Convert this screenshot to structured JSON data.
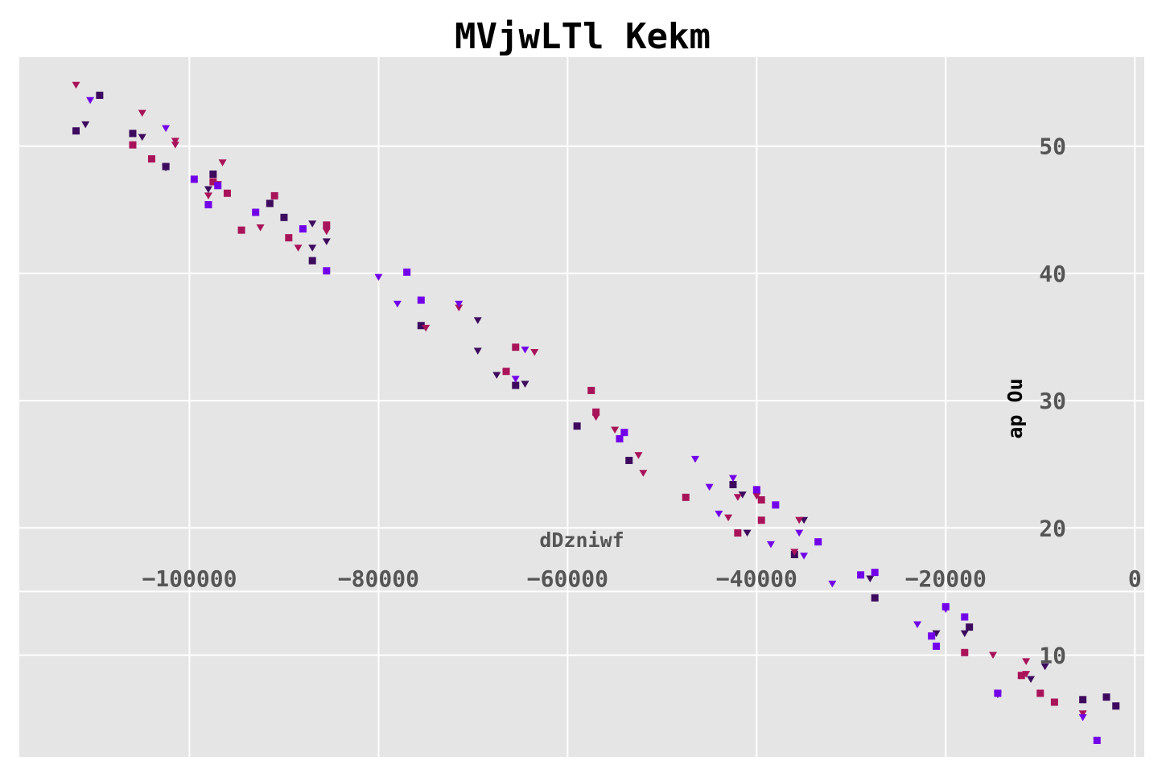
{
  "chart_data": {
    "type": "scatter",
    "title": "MVjwLTl Kekm",
    "xlabel": "dDzniwf",
    "ylabel": "ap Ou",
    "xlim": [
      -118000,
      1000
    ],
    "ylim": [
      2,
      57
    ],
    "x_ticks": [
      -100000,
      -80000,
      -60000,
      -40000,
      -20000,
      0
    ],
    "x_tick_labels": [
      "−100000",
      "−80000",
      "−60000",
      "−40000",
      "−20000",
      "0"
    ],
    "y_ticks": [
      10,
      20,
      30,
      40,
      50
    ],
    "y_tick_labels": [
      "10",
      "20",
      "30",
      "40",
      "50"
    ],
    "grid": true,
    "background": "#e5e5e5",
    "series": [
      {
        "color": "#3d0a5e",
        "marker": "square",
        "points": [
          [
            -109500,
            54.0
          ],
          [
            -112000,
            51.2
          ],
          [
            -106000,
            51.0
          ],
          [
            -102500,
            48.4
          ],
          [
            -97500,
            47.8
          ],
          [
            -91500,
            45.5
          ],
          [
            -90000,
            44.4
          ],
          [
            -87000,
            41.0
          ],
          [
            -75500,
            35.9
          ],
          [
            -65500,
            31.2
          ],
          [
            -59000,
            28.0
          ],
          [
            -53500,
            25.3
          ],
          [
            -42500,
            23.4
          ],
          [
            -36000,
            17.9
          ],
          [
            -27500,
            14.5
          ],
          [
            -17500,
            12.2
          ],
          [
            -5500,
            6.5
          ],
          [
            -3000,
            6.7
          ],
          [
            -2000,
            6.0
          ]
        ]
      },
      {
        "color": "#3d0a5e",
        "marker": "triangle",
        "points": [
          [
            -111000,
            51.7
          ],
          [
            -105000,
            50.7
          ],
          [
            -102500,
            48.3
          ],
          [
            -98000,
            46.6
          ],
          [
            -87000,
            43.9
          ],
          [
            -87000,
            42.0
          ],
          [
            -85500,
            42.5
          ],
          [
            -69500,
            36.3
          ],
          [
            -69500,
            33.9
          ],
          [
            -67500,
            32.0
          ],
          [
            -64500,
            31.3
          ],
          [
            -41500,
            22.6
          ],
          [
            -41000,
            19.6
          ],
          [
            -35000,
            20.6
          ],
          [
            -28000,
            16.0
          ],
          [
            -21000,
            11.7
          ],
          [
            -18000,
            11.7
          ],
          [
            -14500,
            6.9
          ],
          [
            -11000,
            8.1
          ],
          [
            -9500,
            9.1
          ]
        ]
      },
      {
        "color": "#a8135a",
        "marker": "square",
        "points": [
          [
            -106000,
            50.1
          ],
          [
            -104000,
            49.0
          ],
          [
            -97500,
            47.2
          ],
          [
            -96000,
            46.3
          ],
          [
            -94500,
            43.4
          ],
          [
            -91000,
            46.1
          ],
          [
            -89500,
            42.8
          ],
          [
            -85500,
            43.8
          ],
          [
            -66500,
            32.3
          ],
          [
            -65500,
            34.2
          ],
          [
            -57500,
            30.8
          ],
          [
            -57000,
            29.1
          ],
          [
            -47500,
            22.4
          ],
          [
            -42000,
            19.6
          ],
          [
            -39500,
            22.2
          ],
          [
            -39500,
            20.6
          ],
          [
            -18000,
            10.2
          ],
          [
            -12000,
            8.4
          ],
          [
            -10000,
            7.0
          ],
          [
            -8500,
            6.3
          ]
        ]
      },
      {
        "color": "#a8135a",
        "marker": "triangle",
        "points": [
          [
            -112000,
            54.8
          ],
          [
            -105000,
            52.6
          ],
          [
            -101500,
            50.4
          ],
          [
            -101500,
            50.1
          ],
          [
            -96500,
            48.7
          ],
          [
            -98000,
            46.1
          ],
          [
            -97000,
            47.0
          ],
          [
            -92500,
            43.6
          ],
          [
            -88500,
            42.0
          ],
          [
            -85500,
            43.3
          ],
          [
            -75000,
            35.7
          ],
          [
            -71500,
            37.3
          ],
          [
            -63500,
            33.8
          ],
          [
            -57000,
            28.7
          ],
          [
            -55000,
            27.7
          ],
          [
            -52500,
            25.7
          ],
          [
            -52000,
            24.3
          ],
          [
            -43000,
            20.8
          ],
          [
            -42000,
            22.4
          ],
          [
            -40000,
            22.5
          ],
          [
            -36000,
            18.1
          ],
          [
            -35500,
            20.6
          ],
          [
            -15000,
            10.0
          ],
          [
            -11500,
            9.5
          ],
          [
            -11500,
            8.5
          ],
          [
            -5500,
            5.4
          ]
        ]
      },
      {
        "color": "#7200e8",
        "marker": "square",
        "points": [
          [
            -99500,
            47.4
          ],
          [
            -98000,
            45.4
          ],
          [
            -97000,
            46.9
          ],
          [
            -93000,
            44.8
          ],
          [
            -88000,
            43.5
          ],
          [
            -85500,
            40.2
          ],
          [
            -77000,
            40.1
          ],
          [
            -75500,
            37.9
          ],
          [
            -54000,
            27.5
          ],
          [
            -54500,
            27.0
          ],
          [
            -40000,
            23.0
          ],
          [
            -38000,
            21.8
          ],
          [
            -33500,
            18.9
          ],
          [
            -29000,
            16.3
          ],
          [
            -27500,
            16.5
          ],
          [
            -20000,
            13.8
          ],
          [
            -18000,
            13.0
          ],
          [
            -21500,
            11.5
          ],
          [
            -21000,
            10.7
          ],
          [
            -14500,
            7.0
          ],
          [
            -4000,
            3.3
          ]
        ]
      },
      {
        "color": "#7200e8",
        "marker": "triangle",
        "points": [
          [
            -110500,
            53.6
          ],
          [
            -102500,
            51.4
          ],
          [
            -80000,
            39.7
          ],
          [
            -78000,
            37.6
          ],
          [
            -71500,
            37.6
          ],
          [
            -65500,
            31.7
          ],
          [
            -64500,
            34.0
          ],
          [
            -46500,
            25.4
          ],
          [
            -45000,
            23.2
          ],
          [
            -44000,
            21.1
          ],
          [
            -42500,
            23.9
          ],
          [
            -38500,
            18.7
          ],
          [
            -35500,
            19.6
          ],
          [
            -35000,
            17.8
          ],
          [
            -32000,
            15.6
          ],
          [
            -23000,
            12.4
          ],
          [
            -20000,
            13.6
          ],
          [
            -5500,
            5.1
          ]
        ]
      }
    ]
  }
}
